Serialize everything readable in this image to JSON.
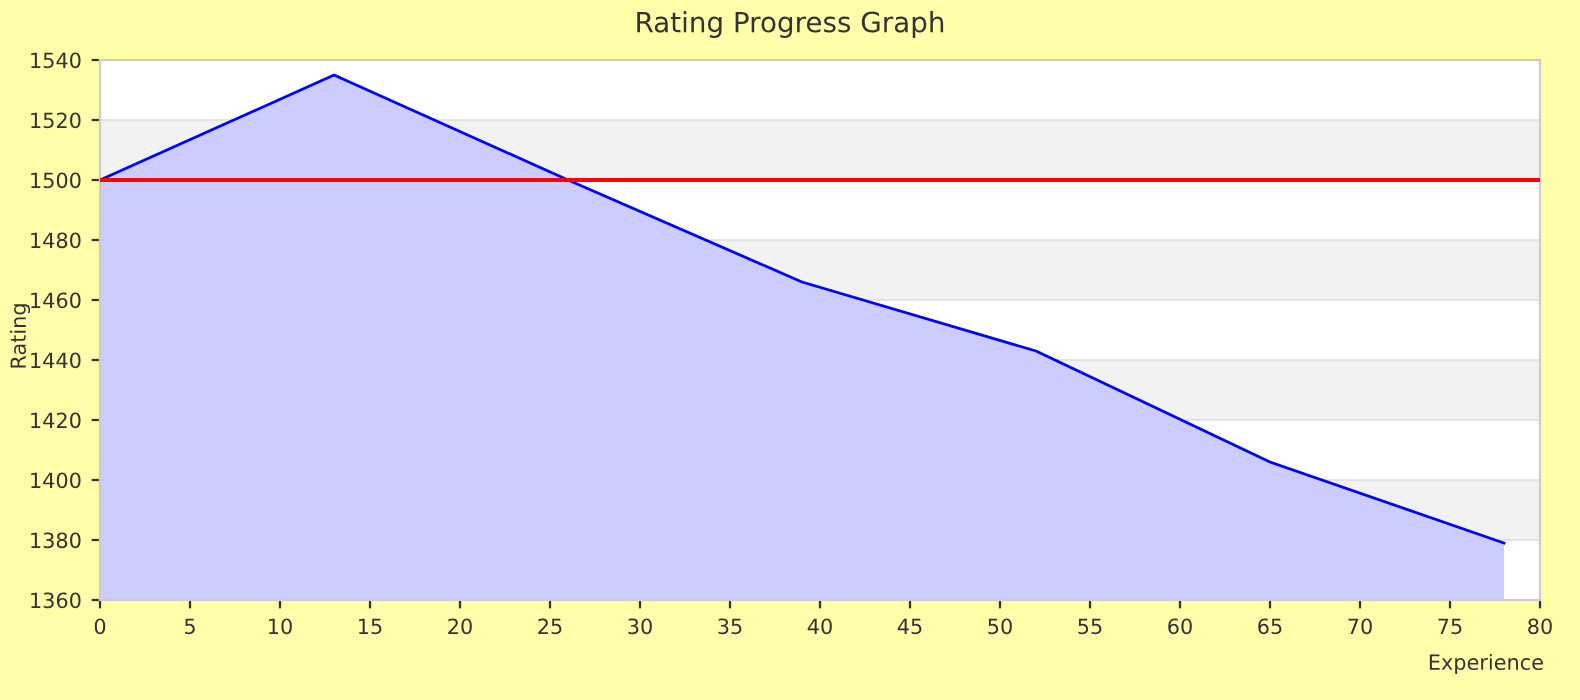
{
  "chart_data": {
    "type": "area",
    "title": "Rating Progress Graph",
    "xlabel": "Experience",
    "ylabel": "Rating",
    "x": [
      0,
      13,
      26,
      39,
      52,
      65,
      78
    ],
    "series": [
      {
        "color": "#0000ff",
        "values": [
          1500,
          1535,
          1500,
          1466,
          1443,
          1406,
          1379
        ]
      }
    ],
    "xlim": [
      0,
      80
    ],
    "xticks": [
      0,
      5,
      10,
      15,
      20,
      25,
      30,
      35,
      40,
      45,
      50,
      55,
      60,
      65,
      70,
      75,
      80
    ],
    "ylim": [
      1360,
      1540
    ],
    "yticks": [
      1360,
      1380,
      1400,
      1420,
      1440,
      1460,
      1480,
      1500,
      1520,
      1540
    ],
    "ref_lines": [
      {
        "axis": "y",
        "value": 1500,
        "color": "#ff0000"
      }
    ],
    "grid": "y",
    "legend": false
  }
}
